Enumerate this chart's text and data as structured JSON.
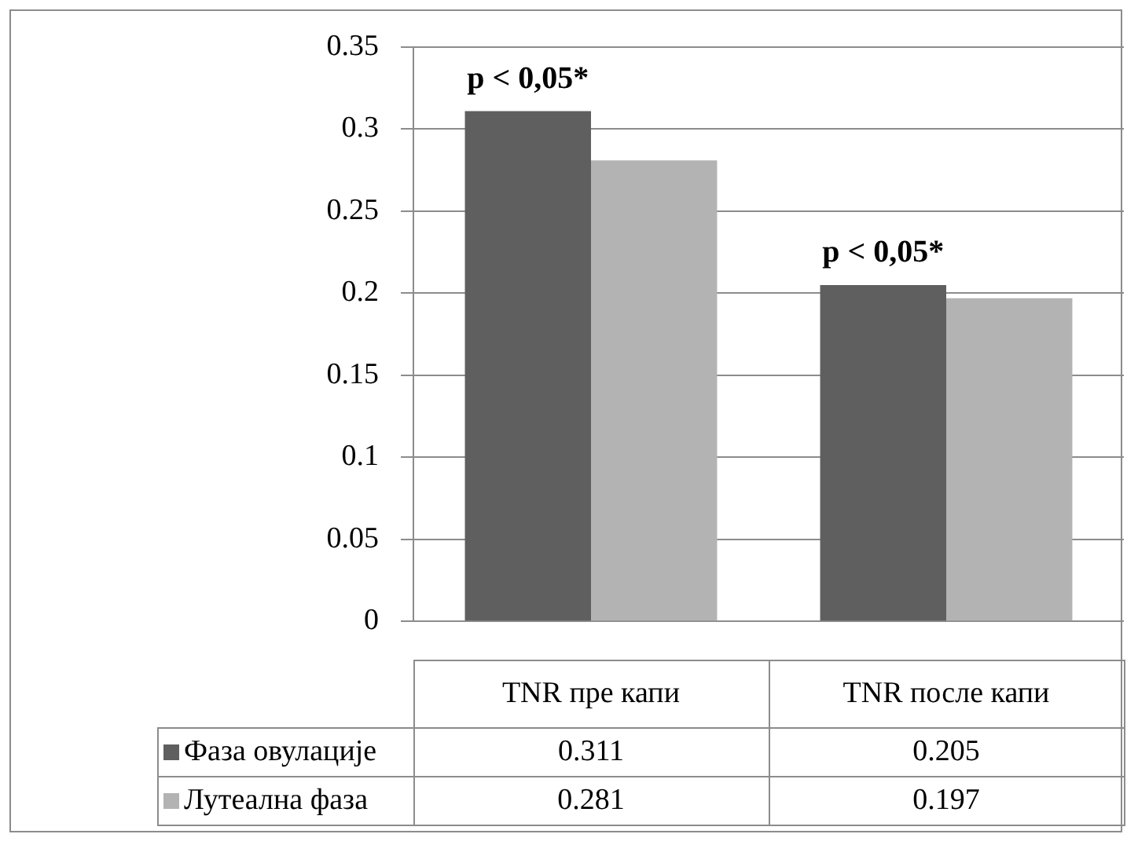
{
  "chart_data": {
    "type": "bar",
    "categories": [
      "TNR пре капи",
      "TNR после капи"
    ],
    "series": [
      {
        "name": "Фаза овулације",
        "color": "#5f5f5f",
        "values": [
          0.311,
          0.205
        ]
      },
      {
        "name": "Лутеална фаза",
        "color": "#b3b3b3",
        "values": [
          0.281,
          0.197
        ]
      }
    ],
    "ylim": [
      0,
      0.35
    ],
    "yticks": [
      0,
      0.05,
      0.1,
      0.15,
      0.2,
      0.25,
      0.3,
      0.35
    ],
    "grid": "y",
    "legend": "bottom",
    "data_labels": true,
    "annotations": [
      "p < 0,05*",
      "p < 0,05*"
    ]
  }
}
